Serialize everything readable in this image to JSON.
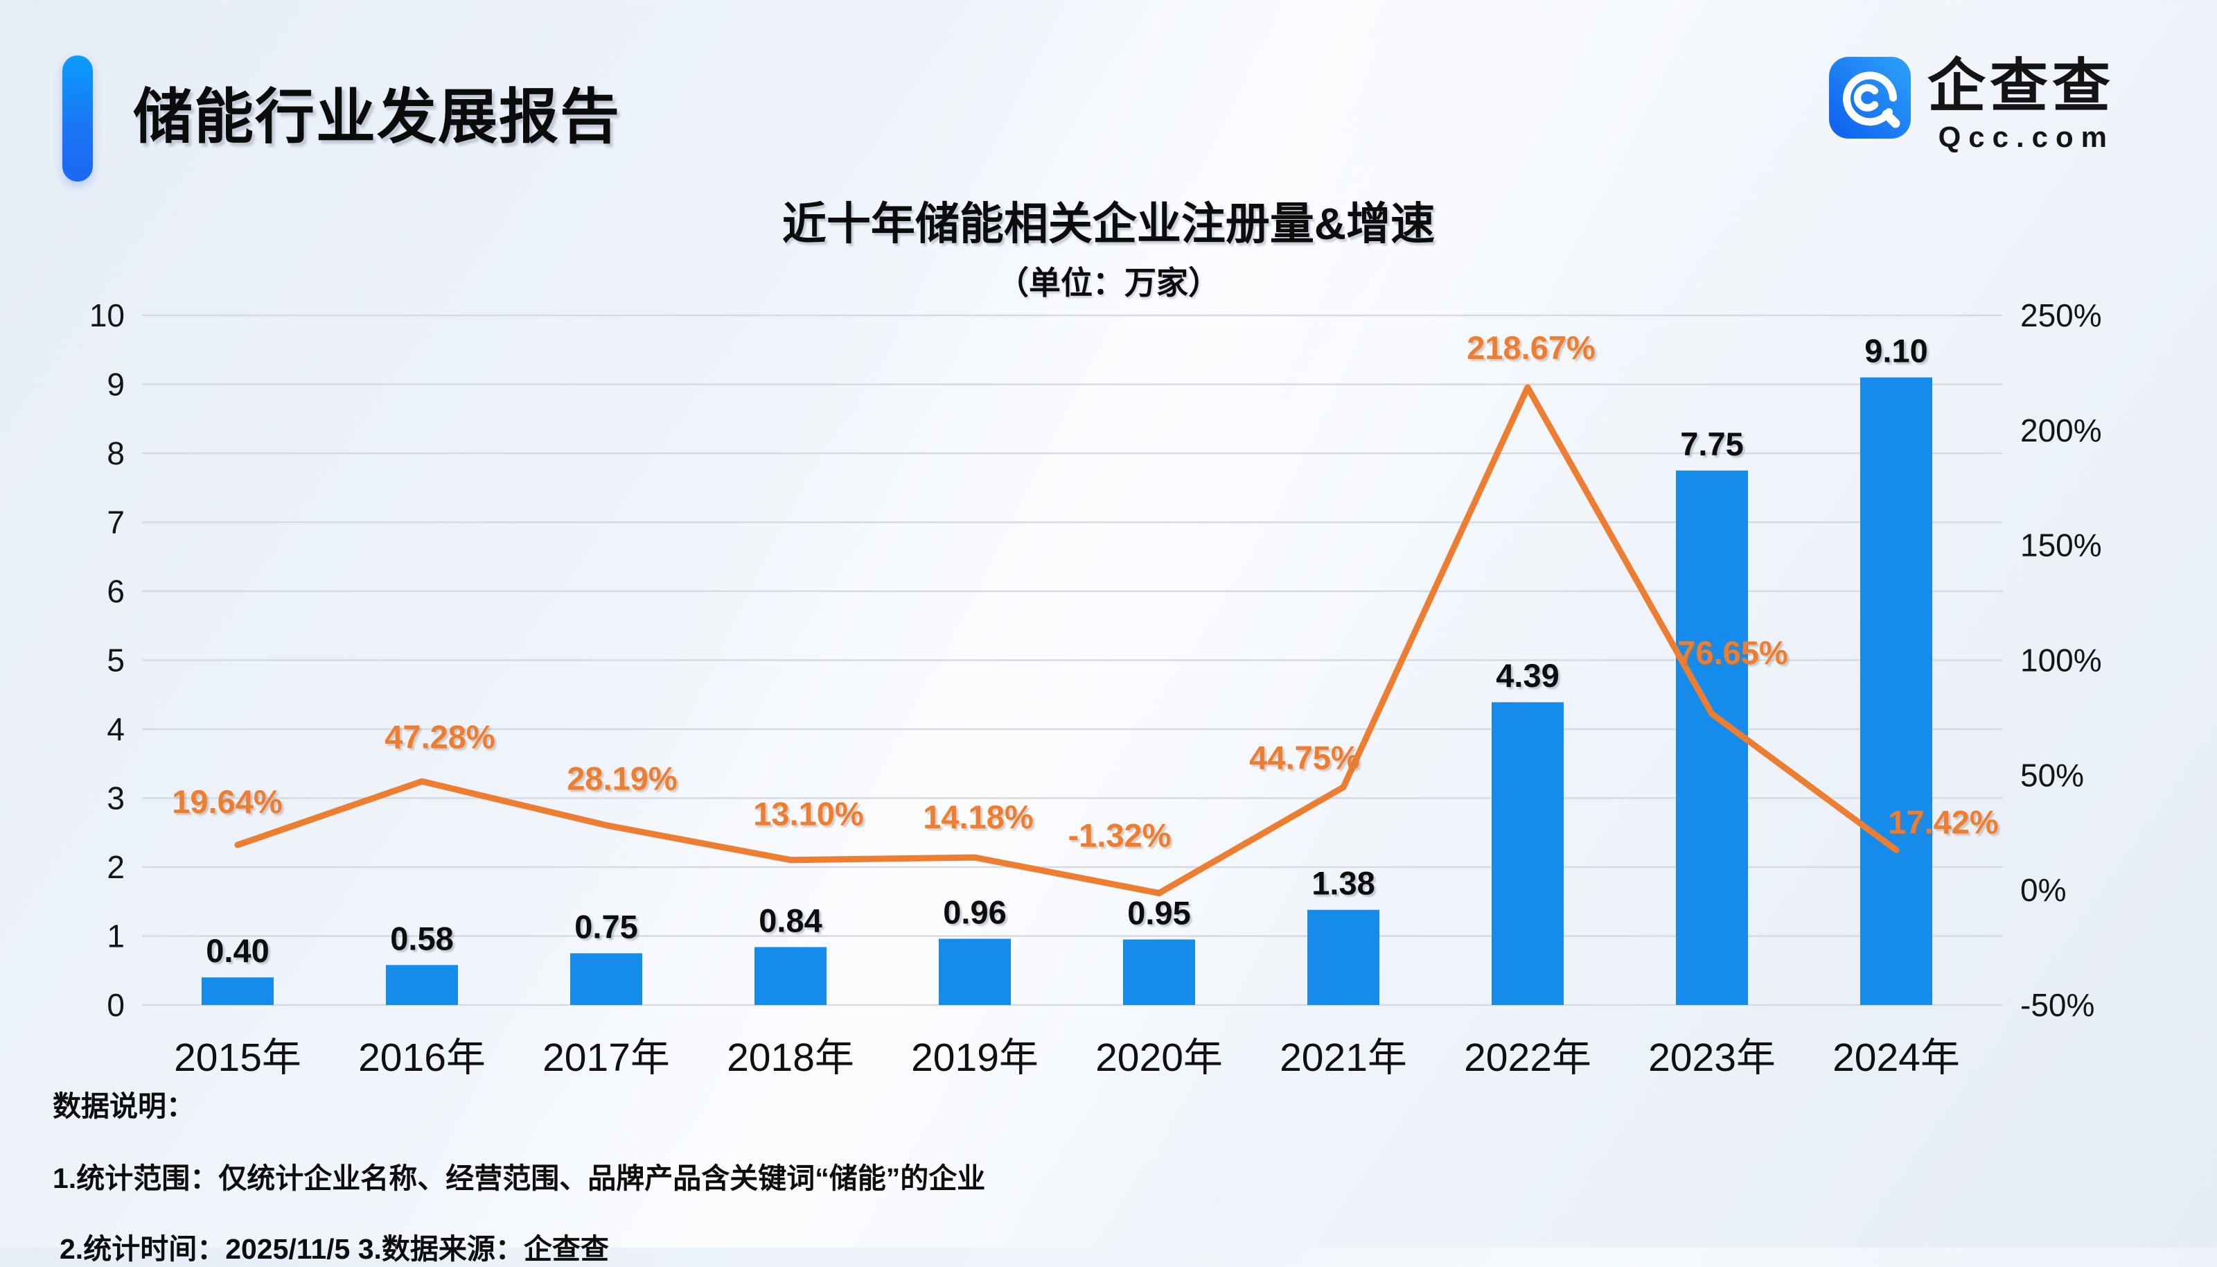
{
  "header": {
    "title": "储能行业发展报告"
  },
  "logo": {
    "company": "企查查",
    "domain": "Qcc.com",
    "icon_color_top": "#2ea3f9",
    "icon_color_bottom": "#0d5ef0"
  },
  "chart_data": {
    "type": "bar",
    "title": "近十年储能相关企业注册量&增速",
    "subtitle": "（单位：万家）",
    "categories": [
      "2015年",
      "2016年",
      "2017年",
      "2018年",
      "2019年",
      "2020年",
      "2021年",
      "2022年",
      "2023年",
      "2024年"
    ],
    "series": [
      {
        "name": "注册量",
        "type": "bar",
        "values": [
          0.4,
          0.58,
          0.75,
          0.84,
          0.96,
          0.95,
          1.38,
          4.39,
          7.75,
          9.1
        ],
        "labels": [
          "0.40",
          "0.58",
          "0.75",
          "0.84",
          "0.96",
          "0.95",
          "1.38",
          "4.39",
          "7.75",
          "9.10"
        ],
        "color": "#158bec"
      },
      {
        "name": "增速",
        "type": "line",
        "values": [
          19.64,
          47.28,
          28.19,
          13.1,
          14.18,
          -1.32,
          44.75,
          218.67,
          76.65,
          17.42
        ],
        "labels": [
          "19.64%",
          "47.28%",
          "28.19%",
          "13.10%",
          "14.18%",
          "-1.32%",
          "44.75%",
          "218.67%",
          "76.65%",
          "17.42%"
        ],
        "color": "#ed7d31"
      }
    ],
    "left_axis": {
      "min": 0,
      "max": 10,
      "ticks": [
        "0",
        "1",
        "2",
        "3",
        "4",
        "5",
        "6",
        "7",
        "8",
        "9",
        "10"
      ]
    },
    "right_axis": {
      "min": -50,
      "max": 250,
      "ticks": [
        "-50%",
        "0%",
        "50%",
        "100%",
        "150%",
        "200%",
        "250%"
      ]
    },
    "grid": true,
    "legend_position": "none"
  },
  "footer": {
    "heading": "数据说明：",
    "note1": "1.统计范围：仅统计企业名称、经营范围、品牌产品含关键词“储能”的企业",
    "note2": "2.统计时间：2025/11/5  3.数据来源：企查查"
  }
}
